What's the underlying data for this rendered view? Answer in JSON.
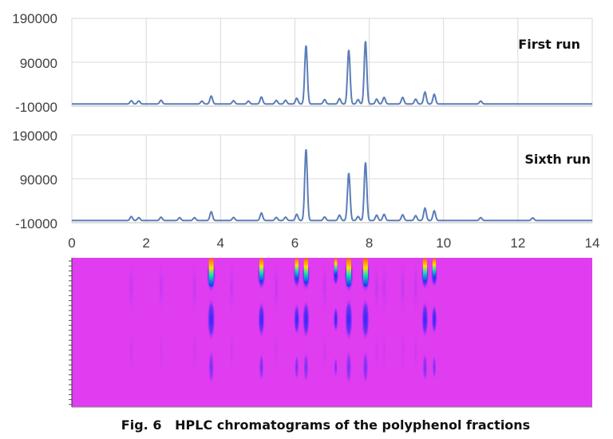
{
  "chart_data": [
    {
      "type": "line",
      "name": "chart-first-run",
      "title": "First run",
      "xlim": [
        0,
        14
      ],
      "ylim": [
        -10000,
        190000
      ],
      "y_ticks": [
        "190000",
        "90000",
        "-10000"
      ],
      "grid": true,
      "baseline": -5000,
      "peaks": [
        [
          1.6,
          2500
        ],
        [
          1.8,
          2000
        ],
        [
          2.4,
          3500
        ],
        [
          3.5,
          1500
        ],
        [
          3.75,
          13000
        ],
        [
          4.35,
          2500
        ],
        [
          4.75,
          1500
        ],
        [
          5.1,
          11000
        ],
        [
          5.5,
          3000
        ],
        [
          5.75,
          3500
        ],
        [
          6.05,
          8000
        ],
        [
          6.3,
          128000
        ],
        [
          6.8,
          5000
        ],
        [
          7.2,
          7000
        ],
        [
          7.45,
          118000
        ],
        [
          7.7,
          5000
        ],
        [
          7.9,
          138000
        ],
        [
          8.2,
          6000
        ],
        [
          8.4,
          10000
        ],
        [
          8.9,
          10000
        ],
        [
          9.25,
          6000
        ],
        [
          9.5,
          22000
        ],
        [
          9.75,
          17000
        ],
        [
          11.0,
          1500
        ]
      ]
    },
    {
      "type": "line",
      "name": "chart-sixth-run",
      "title": "Sixth run",
      "xlim": [
        0,
        14
      ],
      "ylim": [
        -10000,
        190000
      ],
      "y_ticks": [
        "190000",
        "90000",
        "-10000"
      ],
      "x_ticks": [
        "0",
        "2",
        "4",
        "6",
        "8",
        "10",
        "12",
        "14"
      ],
      "grid": true,
      "baseline": -5000,
      "peaks": [
        [
          1.6,
          4000
        ],
        [
          1.8,
          1500
        ],
        [
          2.4,
          2500
        ],
        [
          2.9,
          1500
        ],
        [
          3.3,
          1500
        ],
        [
          3.75,
          15000
        ],
        [
          4.35,
          2000
        ],
        [
          5.1,
          12000
        ],
        [
          5.5,
          2000
        ],
        [
          5.75,
          2500
        ],
        [
          6.05,
          9000
        ],
        [
          6.3,
          157000
        ],
        [
          6.8,
          3000
        ],
        [
          7.2,
          7000
        ],
        [
          7.45,
          103000
        ],
        [
          7.7,
          4000
        ],
        [
          7.9,
          127000
        ],
        [
          8.2,
          7000
        ],
        [
          8.4,
          9000
        ],
        [
          8.9,
          8000
        ],
        [
          9.25,
          6000
        ],
        [
          9.5,
          23000
        ],
        [
          9.75,
          17000
        ],
        [
          11.0,
          1500
        ],
        [
          12.4,
          1000
        ]
      ]
    },
    {
      "type": "heatmap",
      "name": "chart-3d-contour",
      "xlim": [
        0,
        14
      ],
      "background": "#e03cf0",
      "bands": [
        [
          3.75,
          1.0
        ],
        [
          5.1,
          0.85
        ],
        [
          6.05,
          0.75
        ],
        [
          6.3,
          0.9
        ],
        [
          7.1,
          0.6
        ],
        [
          7.45,
          1.0
        ],
        [
          7.9,
          1.0
        ],
        [
          9.5,
          0.85
        ],
        [
          9.75,
          0.7
        ]
      ]
    }
  ],
  "caption": "Fig. 6   HPLC chromatograms of the polyphenol fractions",
  "colors": {
    "line": "#5b7db8",
    "grid": "#d9d9d9",
    "axis": "#bfbfbf",
    "heat_bg": "#e03cf0",
    "heat_hot": "#ff2a10",
    "heat_mid": "#19e3a8",
    "heat_cold": "#1030ff"
  }
}
